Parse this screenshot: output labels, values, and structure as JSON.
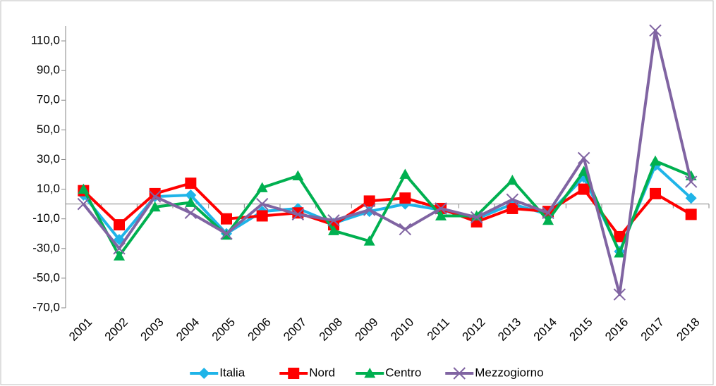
{
  "chart_data": {
    "type": "line",
    "categories": [
      "2001",
      "2002",
      "2003",
      "2004",
      "2005",
      "2006",
      "2007",
      "2008",
      "2009",
      "2010",
      "2011",
      "2012",
      "2013",
      "2014",
      "2015",
      "2016",
      "2017",
      "2018"
    ],
    "series": [
      {
        "name": "Italia",
        "color": "#1fb4e8",
        "marker": "diamond",
        "values": [
          6,
          -24,
          5,
          6,
          -20,
          -5,
          -3,
          -13,
          -5,
          0,
          -4,
          -10,
          0,
          -7,
          18,
          -32,
          26,
          4
        ]
      },
      {
        "name": "Nord",
        "color": "#ff0000",
        "marker": "square",
        "values": [
          9,
          -14,
          7,
          14,
          -10,
          -8,
          -6,
          -14,
          2,
          4,
          -3,
          -12,
          -3,
          -5,
          10,
          -22,
          7,
          -7
        ]
      },
      {
        "name": "Centro",
        "color": "#00b050",
        "marker": "triangle",
        "values": [
          10,
          -35,
          -2,
          1,
          -21,
          11,
          19,
          -18,
          -25,
          20,
          -8,
          -8,
          16,
          -11,
          22,
          -33,
          29,
          19
        ]
      },
      {
        "name": "Mezzogiorno",
        "color": "#8064a2",
        "marker": "x",
        "values": [
          0,
          -30,
          5,
          -6,
          -20,
          0,
          -7,
          -11,
          -4,
          -17,
          -3,
          -9,
          3,
          -6,
          31,
          -61,
          117,
          15
        ]
      }
    ],
    "ylim": [
      -70,
      120
    ],
    "yticks": [
      {
        "value": -70,
        "label": "-70,0"
      },
      {
        "value": -50,
        "label": "-50,0"
      },
      {
        "value": -30,
        "label": "-30,0"
      },
      {
        "value": -10,
        "label": "-10,0"
      },
      {
        "value": 10,
        "label": "10,0"
      },
      {
        "value": 30,
        "label": "30,0"
      },
      {
        "value": 50,
        "label": "50,0"
      },
      {
        "value": 70,
        "label": "70,0"
      },
      {
        "value": 90,
        "label": "90,0"
      },
      {
        "value": 110,
        "label": "110,0"
      }
    ],
    "legend": "bottom"
  }
}
